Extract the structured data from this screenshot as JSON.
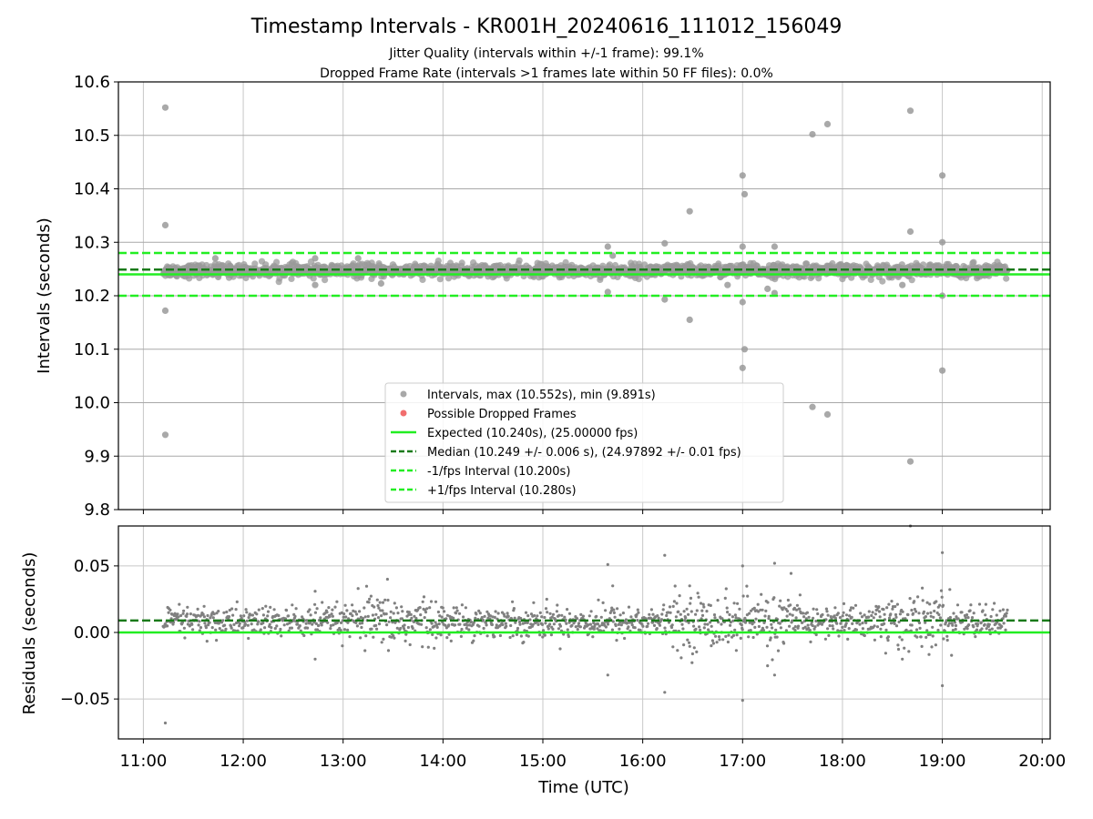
{
  "chart_data": {
    "title": "Timestamp Intervals - KR001H_20240616_111012_156049",
    "subtitle_lines": [
      "Jitter Quality (intervals within +/-1 frame): 99.1%",
      "Dropped Frame Rate (intervals >1 frames late within 50 FF files): 0.0%"
    ],
    "xlabel": "Time (UTC)",
    "x_ticks": [
      "11:00",
      "12:00",
      "13:00",
      "14:00",
      "15:00",
      "16:00",
      "17:00",
      "18:00",
      "19:00",
      "20:00"
    ],
    "xlim_hours": [
      10.75,
      20.08
    ],
    "top_panel": {
      "type": "scatter",
      "ylabel": "Intervals (seconds)",
      "ylim": [
        9.8,
        10.6
      ],
      "y_ticks": [
        "9.8",
        "9.9",
        "10.0",
        "10.1",
        "10.2",
        "10.3",
        "10.4",
        "10.5",
        "10.6"
      ],
      "grid": true,
      "expected": 10.24,
      "median": 10.249,
      "minus_interval": 10.2,
      "plus_interval": 10.28,
      "band": {
        "x_start": 11.2,
        "x_end": 19.65,
        "center": 10.247,
        "spread": 0.006
      },
      "outliers": [
        [
          11.22,
          10.552
        ],
        [
          11.22,
          10.332
        ],
        [
          11.22,
          10.172
        ],
        [
          11.22,
          9.94
        ],
        [
          11.72,
          10.27
        ],
        [
          11.75,
          10.235
        ],
        [
          12.72,
          10.27
        ],
        [
          12.72,
          10.22
        ],
        [
          13.15,
          10.27
        ],
        [
          13.38,
          10.223
        ],
        [
          15.65,
          10.292
        ],
        [
          15.65,
          10.207
        ],
        [
          15.7,
          10.275
        ],
        [
          16.22,
          10.298
        ],
        [
          16.22,
          10.193
        ],
        [
          16.47,
          10.358
        ],
        [
          16.47,
          10.155
        ],
        [
          16.85,
          10.22
        ],
        [
          17.0,
          10.425
        ],
        [
          17.0,
          10.292
        ],
        [
          17.0,
          10.188
        ],
        [
          17.02,
          10.39
        ],
        [
          17.02,
          10.1
        ],
        [
          17.0,
          10.065
        ],
        [
          17.25,
          10.213
        ],
        [
          17.32,
          10.292
        ],
        [
          17.32,
          10.205
        ],
        [
          17.7,
          10.502
        ],
        [
          17.7,
          9.992
        ],
        [
          17.85,
          10.521
        ],
        [
          17.85,
          9.978
        ],
        [
          18.6,
          10.22
        ],
        [
          18.68,
          10.546
        ],
        [
          18.68,
          10.32
        ],
        [
          18.68,
          9.89
        ],
        [
          19.0,
          10.425
        ],
        [
          19.0,
          10.3
        ],
        [
          19.0,
          10.2
        ],
        [
          19.0,
          10.06
        ]
      ],
      "legend": {
        "placement": "lower-center",
        "entries": [
          {
            "label": "Intervals, max (10.552s), min (9.891s)",
            "kind": "dot",
            "color": "#999999"
          },
          {
            "label": "Possible Dropped Frames",
            "kind": "dot",
            "color": "#ee5555"
          },
          {
            "label": "Expected (10.240s), (25.00000 fps)",
            "kind": "solid",
            "color": "#22ee22"
          },
          {
            "label": "Median (10.249 +/- 0.006 s), (24.97892 +/- 0.01 fps)",
            "kind": "dashed",
            "color": "#1a7a1a"
          },
          {
            "label": "-1/fps Interval (10.200s)",
            "kind": "dashed",
            "color": "#22ee22"
          },
          {
            "label": "+1/fps Interval (10.280s)",
            "kind": "dashed",
            "color": "#22ee22"
          }
        ]
      }
    },
    "bottom_panel": {
      "type": "scatter",
      "ylabel": "Residuals (seconds)",
      "ylim": [
        -0.08,
        0.08
      ],
      "y_ticks": [
        "−0.05",
        "0.00",
        "0.05"
      ],
      "y_tick_values": [
        -0.05,
        0.0,
        0.05
      ],
      "grid": true,
      "expected": 0.0,
      "median": 0.009,
      "band": {
        "x_start": 11.2,
        "x_end": 19.65,
        "center": 0.008,
        "spread": 0.006
      },
      "outliers": [
        [
          11.22,
          -0.068
        ],
        [
          12.72,
          0.031
        ],
        [
          12.72,
          -0.02
        ],
        [
          13.15,
          0.033
        ],
        [
          15.65,
          0.051
        ],
        [
          15.65,
          -0.032
        ],
        [
          15.7,
          0.035
        ],
        [
          16.22,
          0.058
        ],
        [
          16.22,
          -0.045
        ],
        [
          16.47,
          0.035
        ],
        [
          17.0,
          -0.051
        ],
        [
          17.0,
          0.05
        ],
        [
          17.25,
          -0.025
        ],
        [
          17.32,
          0.052
        ],
        [
          17.32,
          -0.032
        ],
        [
          18.6,
          -0.02
        ],
        [
          18.68,
          0.08
        ],
        [
          19.0,
          0.06
        ],
        [
          19.0,
          -0.04
        ]
      ]
    },
    "colors": {
      "points": "#808080",
      "points_top": "#9a9a9a",
      "expected": "#22ee22",
      "median": "#1a7a1a",
      "grid": "#c8c8c8"
    }
  }
}
